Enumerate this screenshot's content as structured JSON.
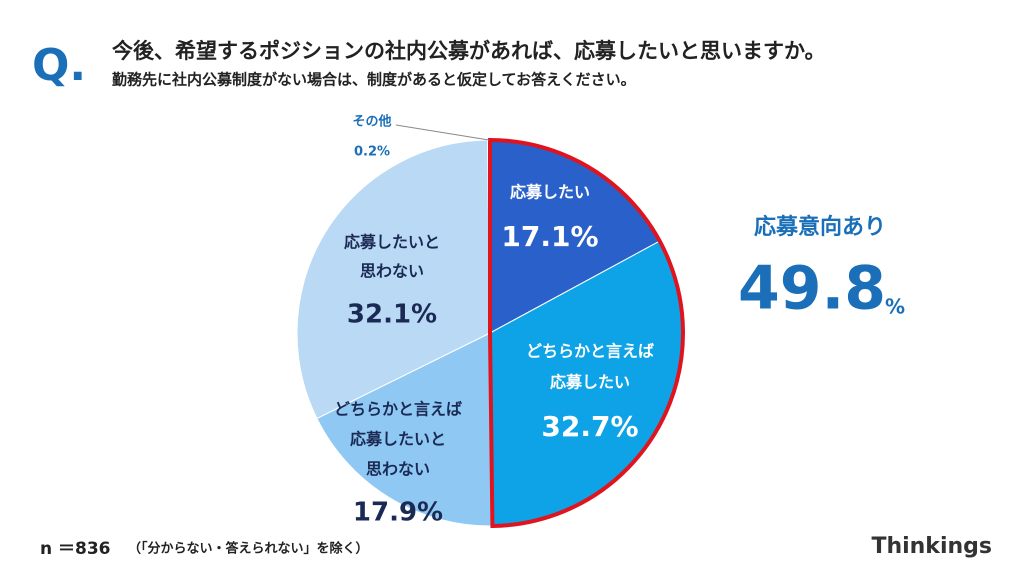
{
  "chart_data": {
    "type": "pie",
    "mark": "Q.",
    "title": "今後、希望するポジションの社内公募があれば、応募したいと思いますか。",
    "subtitle": "勤務先に社内公募制度がない場合は、制度があると仮定してお答えください。",
    "categories": [
      [
        "応募したい"
      ],
      [
        "どちらかと言えば",
        "応募したい"
      ],
      [
        "どちらかと言えば",
        "応募したいと",
        "思わない"
      ],
      [
        "応募したいと",
        "思わない"
      ],
      [
        "その他"
      ]
    ],
    "values": [
      17.1,
      32.7,
      17.9,
      32.1,
      0.2
    ],
    "value_labels": [
      "17.1%",
      "32.7%",
      "17.9%",
      "32.1%",
      "0.2%"
    ],
    "colors": [
      "#2a60c9",
      "#0ea2e6",
      "#8fc9f3",
      "#b9d9f4",
      "#d9d9d9"
    ],
    "highlight": {
      "label": "応募意向あり",
      "value": 49.8,
      "unit": "%",
      "color": "#e0141e"
    },
    "sample": "n ＝836",
    "note": "（「分からない・答えられない」を除く）",
    "brand": "Thinkings"
  }
}
